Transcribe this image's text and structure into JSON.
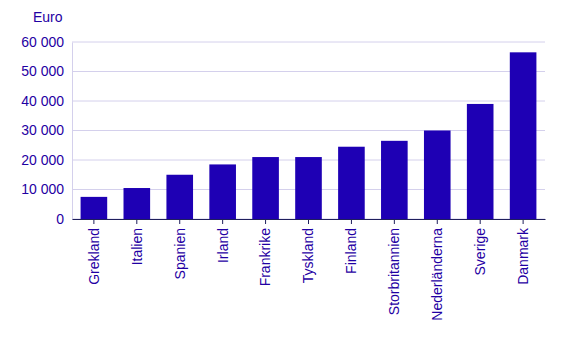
{
  "chart_data": {
    "type": "bar",
    "y_label": "Euro",
    "categories": [
      "Grekland",
      "Italien",
      "Spanien",
      "Irland",
      "Frankrike",
      "Tyskland",
      "Finland",
      "Storbritannien",
      "Nederländerna",
      "Sverige",
      "Danmark"
    ],
    "values": [
      7500,
      10500,
      15000,
      18500,
      21000,
      21000,
      24500,
      26500,
      30000,
      39000,
      56500
    ],
    "color": "#1e00b4",
    "ylim": [
      0,
      60000
    ],
    "yticks": [
      0,
      {
        "value": 10000,
        "label": "10 000"
      },
      {
        "value": 20000,
        "label": "20 000"
      },
      {
        "value": 30000,
        "label": "30 000"
      },
      {
        "value": 40000,
        "label": "40 000"
      },
      {
        "value": 50000,
        "label": "50 000"
      },
      {
        "value": 60000,
        "label": "60 000"
      }
    ],
    "grid": true
  }
}
